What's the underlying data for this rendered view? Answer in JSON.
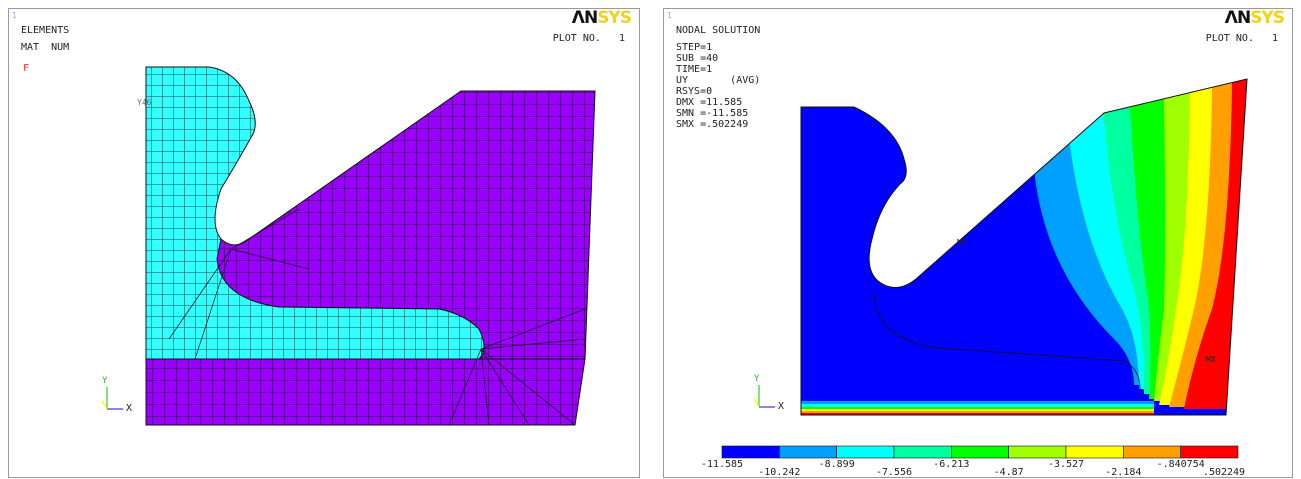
{
  "left_panel": {
    "window_number": "1",
    "logo_part1": "ΛN",
    "logo_part2": "SYS",
    "plot_no": "PLOT NO.   1",
    "lines": [
      "ELEMENTS",
      "MAT  NUM"
    ],
    "marker": "F",
    "node_label": "Y46",
    "triad_y": "Y",
    "triad_x": "X",
    "colors": {
      "mat1": "#33ffff",
      "mat2": "#9900ff"
    }
  },
  "right_panel": {
    "window_number": "1",
    "logo_part1": "ΛN",
    "logo_part2": "SYS",
    "plot_no": "PLOT NO.   1",
    "lines": [
      "NODAL SOLUTION",
      "STEP=1",
      "SUB =40",
      "TIME=1",
      "UY       (AVG)",
      "RSYS=0",
      "DMX =11.585",
      "SMN =-11.585",
      "SMX =.502249"
    ],
    "mn_marker": "MN",
    "mx_marker": "MX",
    "triad_y": "Y",
    "triad_x": "X",
    "legend": {
      "colors": [
        "#0000ff",
        "#00a0ff",
        "#00ffff",
        "#00ffa0",
        "#00ff00",
        "#a0ff00",
        "#ffff00",
        "#ffa000",
        "#ff0000"
      ],
      "labels": [
        "-11.585",
        "-10.242",
        "-8.899",
        "-7.556",
        "-6.213",
        "-4.87",
        "-3.527",
        "-2.184",
        "-.840754",
        ".502249"
      ]
    }
  }
}
